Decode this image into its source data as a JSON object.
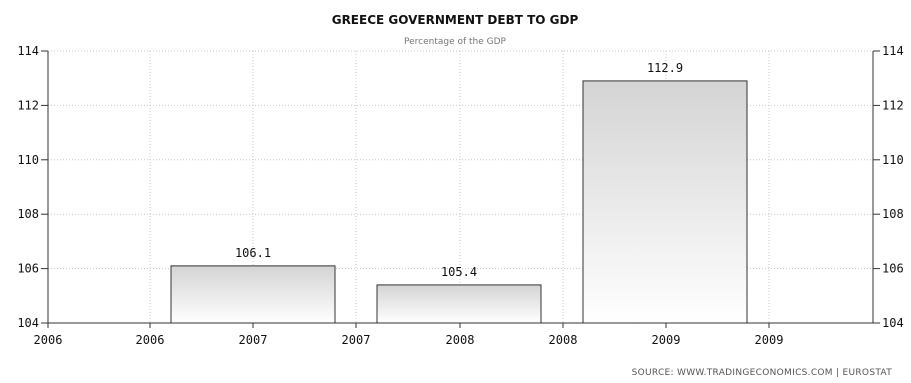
{
  "chart_data": {
    "type": "bar",
    "title": "GREECE GOVERNMENT DEBT TO GDP",
    "subtitle": "Percentage of the GDP",
    "categories": [
      "2007",
      "2008",
      "2009"
    ],
    "values": [
      106.1,
      105.4,
      112.9
    ],
    "data_labels": [
      "106.1",
      "105.4",
      "112.9"
    ],
    "x_tick_labels": [
      "2006",
      "2006",
      "2007",
      "2007",
      "2008",
      "2008",
      "2009",
      "2009"
    ],
    "y_tick_labels": [
      "104",
      "106",
      "108",
      "110",
      "112",
      "114"
    ],
    "ylim": [
      104,
      114
    ],
    "y_ticks": [
      104,
      106,
      108,
      110,
      112,
      114
    ],
    "grid": true,
    "source": "SOURCE:  WWW.TRADINGECONOMICS.COM  |  EUROSTAT",
    "colors": {
      "bar_top": "#d4d4d4",
      "bar_bottom": "#ffffff",
      "bar_stroke": "#333333",
      "grid": "#c8c8c8"
    }
  }
}
